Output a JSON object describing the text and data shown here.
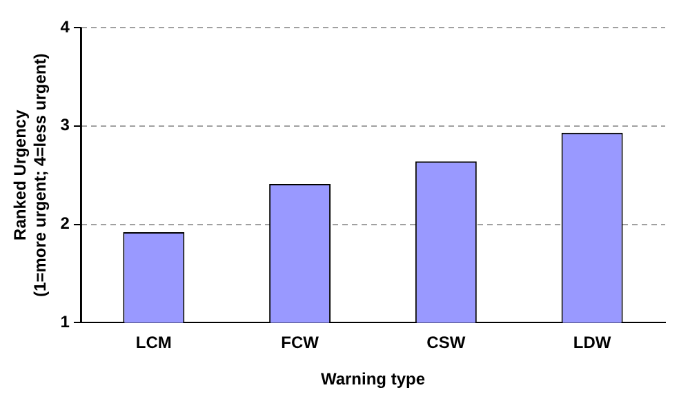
{
  "chart_data": {
    "type": "bar",
    "xlabel": "Warning type",
    "ylabel": "Ranked Urgency\n(1=more urgent; 4=less urgent)",
    "categories": [
      "LCM",
      "FCW",
      "CSW",
      "LDW"
    ],
    "values": [
      1.92,
      2.41,
      2.64,
      2.93
    ],
    "color": "#9999ff",
    "ylim": [
      1,
      4
    ],
    "yticks": [
      1,
      2,
      3,
      4
    ],
    "grid": "y"
  }
}
